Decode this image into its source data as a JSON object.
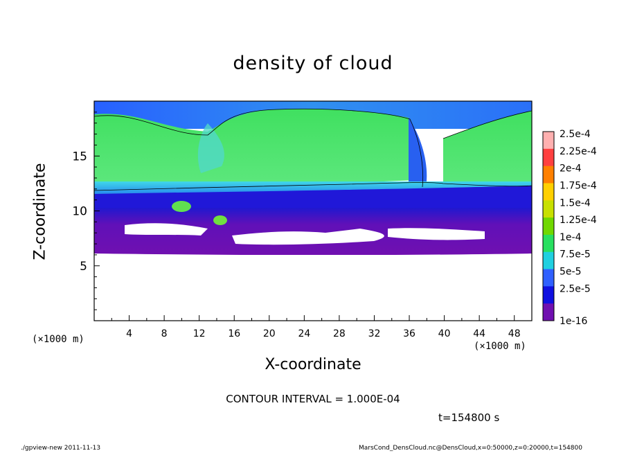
{
  "chart_data": {
    "type": "heatmap",
    "title": "density of cloud",
    "xlabel": "X-coordinate",
    "ylabel": "Z-coordinate",
    "x_unit": "(×1000 m)",
    "y_unit": "(×1000 m)",
    "xlim": [
      0,
      50
    ],
    "ylim": [
      0,
      20
    ],
    "x_ticks": [
      "4",
      "8",
      "12",
      "16",
      "20",
      "24",
      "28",
      "32",
      "36",
      "40",
      "44",
      "48"
    ],
    "y_ticks": [
      "5",
      "10",
      "15"
    ],
    "colorbar_labels": [
      "2.5e-4",
      "2.25e-4",
      "2e-4",
      "1.75e-4",
      "1.5e-4",
      "1.25e-4",
      "1e-4",
      "7.5e-5",
      "5e-5",
      "2.5e-5",
      "1e-16"
    ],
    "colorbar_colors": [
      "#ffb0b0",
      "#ff4040",
      "#ff8000",
      "#ffd000",
      "#c8e000",
      "#70d800",
      "#28e060",
      "#20d0e0",
      "#3060ff",
      "#1010e0",
      "#7010b0"
    ],
    "contour_interval": "CONTOUR INTERVAL = 1.000E-04",
    "grid": false
  },
  "labels": {
    "time": "t=154800 s",
    "footer_left": "./gpview-new   2011-11-13",
    "footer_right": "MarsCond_DensCloud.nc@DensCloud,x=0:50000,z=0:20000,t=154800"
  },
  "colors": {
    "deep_purple": "#7010b0",
    "blue": "#1018e0",
    "cyan": "#40b8f0",
    "green": "#30e050",
    "light_green": "#60e870"
  }
}
